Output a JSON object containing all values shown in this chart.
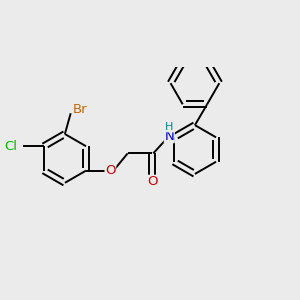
{
  "background_color": "#ebebeb",
  "bond_color": "#000000",
  "bond_width": 1.4,
  "atom_colors": {
    "Cl": "#00bb00",
    "Br": "#cc6600",
    "O": "#cc0000",
    "N": "#0000cc",
    "H": "#008888",
    "C": "#000000"
  },
  "font_size": 9.5,
  "font_size_h": 8.0
}
